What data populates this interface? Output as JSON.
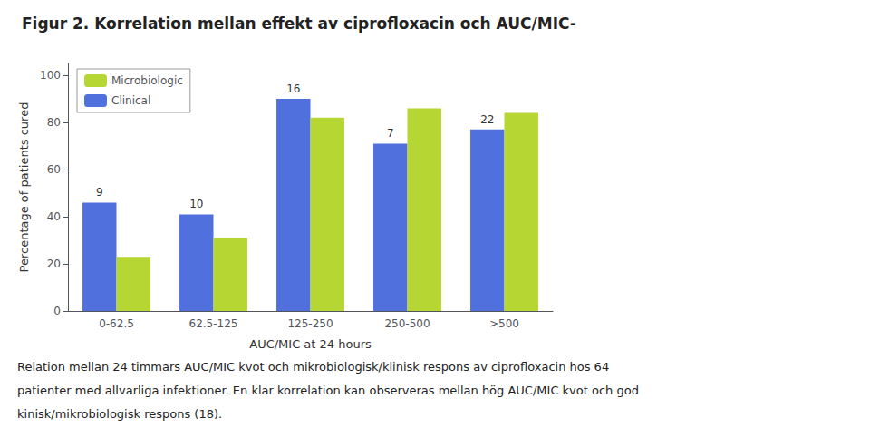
{
  "chart_data": {
    "type": "bar",
    "title": "Figur 2. Korrelation mellan effekt av ciprofloxacin och AUC/MIC-",
    "categories": [
      "0-62.5",
      "62.5-125",
      "125-250",
      "250-500",
      ">500"
    ],
    "series": [
      {
        "name": "Clinical",
        "values": [
          46,
          41,
          90,
          71,
          77
        ],
        "annotations": [
          "9",
          "10",
          "16",
          "7",
          "22"
        ]
      },
      {
        "name": "Microbiologic",
        "values": [
          23,
          31,
          82,
          86,
          84
        ]
      }
    ],
    "xlabel": "AUC/MIC at 24 hours",
    "ylabel": "Percentage of patients cured",
    "ylim": [
      0,
      105
    ],
    "yticks": [
      0,
      20,
      40,
      60,
      80,
      100
    ],
    "grid": false,
    "legend": "upper left",
    "caption": [
      "Relation mellan 24 timmars AUC/MIC kvot och mikrobiologisk/klinisk respons av ciprofloxacin hos 64",
      "patienter med allvarliga infektioner. En klar korrelation kan observeras mellan hög AUC/MIC kvot och god",
      "kinisk/mikrobiologisk respons (18)."
    ]
  }
}
